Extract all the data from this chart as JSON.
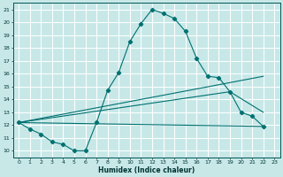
{
  "xlabel": "Humidex (Indice chaleur)",
  "bg_color": "#c8e8e8",
  "grid_color": "#ffffff",
  "line_color": "#007070",
  "xlim": [
    -0.5,
    23.5
  ],
  "ylim": [
    9.5,
    21.5
  ],
  "xtick_vals": [
    0,
    1,
    2,
    3,
    4,
    5,
    6,
    7,
    8,
    9,
    10,
    11,
    12,
    13,
    14,
    15,
    16,
    17,
    18,
    19,
    20,
    21,
    22,
    23
  ],
  "ytick_vals": [
    10,
    11,
    12,
    13,
    14,
    15,
    16,
    17,
    18,
    19,
    20,
    21
  ],
  "main_curve": [
    [
      0,
      12.2
    ],
    [
      1,
      11.7
    ],
    [
      2,
      11.3
    ],
    [
      3,
      10.7
    ],
    [
      4,
      10.5
    ],
    [
      5,
      10.0
    ],
    [
      6,
      10.0
    ],
    [
      7,
      12.2
    ],
    [
      8,
      14.7
    ],
    [
      9,
      16.1
    ],
    [
      10,
      18.5
    ],
    [
      11,
      19.9
    ],
    [
      12,
      21.0
    ],
    [
      13,
      20.7
    ],
    [
      14,
      20.3
    ],
    [
      15,
      19.3
    ],
    [
      16,
      17.2
    ],
    [
      17,
      15.8
    ],
    [
      18,
      15.7
    ],
    [
      19,
      14.6
    ],
    [
      20,
      13.0
    ],
    [
      21,
      12.7
    ],
    [
      22,
      11.9
    ]
  ],
  "line_upper": [
    [
      0,
      12.2
    ],
    [
      22,
      15.8
    ]
  ],
  "line_mid": [
    [
      0,
      12.2
    ],
    [
      19,
      14.6
    ],
    [
      22,
      13.0
    ]
  ],
  "line_lower": [
    [
      0,
      12.2
    ],
    [
      22,
      11.9
    ]
  ]
}
